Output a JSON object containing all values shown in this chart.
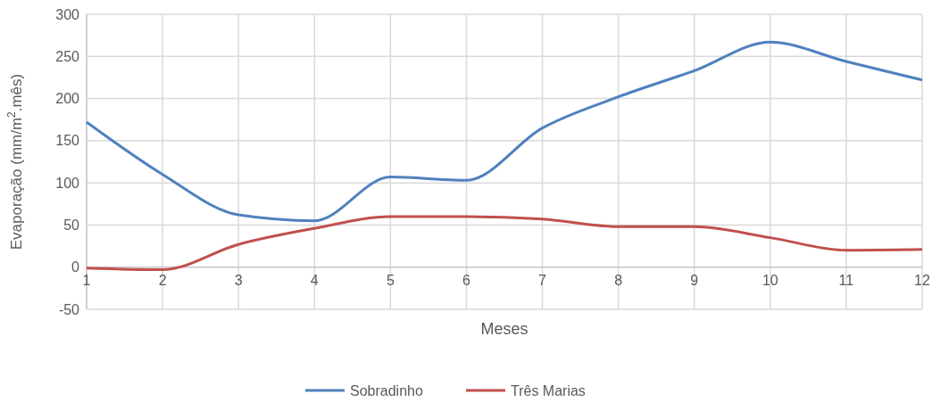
{
  "chart_data": {
    "type": "line",
    "xlabel": "Meses",
    "ylabel": "Evaporação (mm/m$^{2}$.mês)",
    "x": [
      1,
      2,
      3,
      4,
      5,
      6,
      7,
      8,
      9,
      10,
      11,
      12
    ],
    "xlim": [
      1,
      12
    ],
    "xticks": [
      1,
      2,
      3,
      4,
      5,
      6,
      7,
      8,
      9,
      10,
      11,
      12
    ],
    "ylim": [
      -50,
      300
    ],
    "yticks": [
      -50,
      0,
      50,
      100,
      150,
      200,
      250,
      300
    ],
    "grid": true,
    "legend": "bottom",
    "marker": "none",
    "line_style": "solid",
    "series": [
      {
        "name": "Sobradinho",
        "color": "#4f81bd",
        "values": [
          172,
          110,
          62,
          55,
          107,
          103,
          165,
          202,
          233,
          267,
          244,
          222
        ]
      },
      {
        "name": "Três Marias",
        "color": "#c0504d",
        "values": [
          -1,
          -3,
          27,
          46,
          60,
          60,
          57,
          48,
          48,
          35,
          20,
          21
        ]
      }
    ]
  }
}
